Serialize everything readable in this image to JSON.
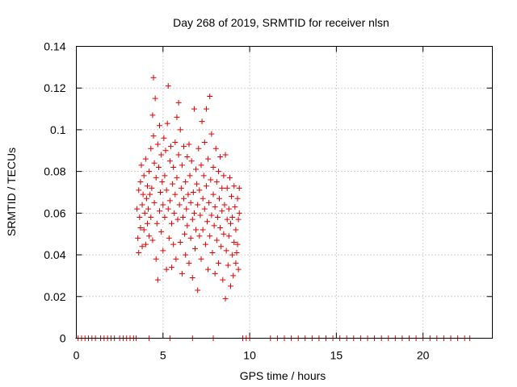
{
  "chart_data": {
    "type": "scatter",
    "title": "Day 268 of 2019, SRMTID for receiver nlsn",
    "xlabel": "GPS time / hours",
    "ylabel": "SRMTID / TECUs",
    "xlim": [
      0,
      24
    ],
    "ylim": [
      0,
      0.14
    ],
    "x_ticks": [
      0,
      5,
      10,
      15,
      20
    ],
    "y_ticks": [
      0,
      0.02,
      0.04,
      0.06,
      0.08,
      0.1,
      0.12,
      0.14
    ],
    "x_tick_labels": [
      "0",
      "5",
      "10",
      "15",
      "20"
    ],
    "y_tick_labels": [
      "0",
      "0.02",
      "0.04",
      "0.06",
      "0.08",
      "0.1",
      "0.12",
      "0.14"
    ],
    "grid": true,
    "legend": "none",
    "marker": "plus",
    "color": "#e00000",
    "series": [
      {
        "points": [
          [
            3.5,
            0.062
          ],
          [
            3.55,
            0.048
          ],
          [
            3.6,
            0.071
          ],
          [
            3.6,
            0.041
          ],
          [
            3.65,
            0.058
          ],
          [
            3.7,
            0.075
          ],
          [
            3.7,
            0.053
          ],
          [
            3.75,
            0.083
          ],
          [
            3.8,
            0.064
          ],
          [
            3.8,
            0.044
          ],
          [
            3.85,
            0.069
          ],
          [
            3.9,
            0.052
          ],
          [
            3.9,
            0.078
          ],
          [
            3.95,
            0.06
          ],
          [
            4.0,
            0.086
          ],
          [
            4.0,
            0.045
          ],
          [
            4.05,
            0.067
          ],
          [
            4.1,
            0.055
          ],
          [
            4.1,
            0.073
          ],
          [
            4.15,
            0.062
          ],
          [
            4.2,
            0.049
          ],
          [
            4.2,
            0.08
          ],
          [
            4.25,
            0.069
          ],
          [
            4.3,
            0.058
          ],
          [
            4.3,
            0.091
          ],
          [
            4.35,
            0.072
          ],
          [
            4.4,
            0.047
          ],
          [
            4.4,
            0.107
          ],
          [
            4.45,
            0.125
          ],
          [
            4.45,
            0.097
          ],
          [
            4.5,
            0.084
          ],
          [
            4.5,
            0.065
          ],
          [
            4.55,
            0.115
          ],
          [
            4.6,
            0.038
          ],
          [
            4.6,
            0.077
          ],
          [
            4.65,
            0.055
          ],
          [
            4.7,
            0.093
          ],
          [
            4.7,
            0.028
          ],
          [
            4.75,
            0.082
          ],
          [
            4.8,
            0.061
          ],
          [
            4.8,
            0.102
          ],
          [
            4.85,
            0.07
          ],
          [
            4.9,
            0.051
          ],
          [
            4.9,
            0.088
          ],
          [
            4.95,
            0.075
          ],
          [
            5.0,
            0.064
          ],
          [
            5.0,
            0.042
          ],
          [
            5.05,
            0.096
          ],
          [
            5.1,
            0.078
          ],
          [
            5.1,
            0.058
          ],
          [
            5.15,
            0.09
          ],
          [
            5.2,
            0.033
          ],
          [
            5.2,
            0.071
          ],
          [
            5.25,
            0.103
          ],
          [
            5.3,
            0.121
          ],
          [
            5.3,
            0.062
          ],
          [
            5.35,
            0.048
          ],
          [
            5.4,
            0.085
          ],
          [
            5.4,
            0.066
          ],
          [
            5.45,
            0.092
          ],
          [
            5.5,
            0.055
          ],
          [
            5.5,
            0.034
          ],
          [
            5.55,
            0.074
          ],
          [
            5.6,
            0.082
          ],
          [
            5.6,
            0.045
          ],
          [
            5.65,
            0.06
          ],
          [
            5.7,
            0.094
          ],
          [
            5.7,
            0.069
          ],
          [
            5.75,
            0.038
          ],
          [
            5.8,
            0.106
          ],
          [
            5.8,
            0.077
          ],
          [
            5.85,
            0.057
          ],
          [
            5.9,
            0.113
          ],
          [
            5.9,
            0.088
          ],
          [
            5.95,
            0.064
          ],
          [
            6.0,
            0.1
          ],
          [
            6.0,
            0.046
          ],
          [
            6.05,
            0.072
          ],
          [
            6.1,
            0.083
          ],
          [
            6.1,
            0.031
          ],
          [
            6.15,
            0.058
          ],
          [
            6.2,
            0.067
          ],
          [
            6.2,
            0.092
          ],
          [
            6.25,
            0.05
          ],
          [
            6.3,
            0.075
          ],
          [
            6.3,
            0.04
          ],
          [
            6.35,
            0.062
          ],
          [
            6.4,
            0.087
          ],
          [
            6.4,
            0.054
          ],
          [
            6.45,
            0.069
          ],
          [
            6.5,
            0.093
          ],
          [
            6.5,
            0.036
          ],
          [
            6.55,
            0.078
          ],
          [
            6.6,
            0.048
          ],
          [
            6.6,
            0.065
          ],
          [
            6.65,
            0.085
          ],
          [
            6.7,
            0.057
          ],
          [
            6.7,
            0.029
          ],
          [
            6.75,
            0.07
          ],
          [
            6.8,
            0.11
          ],
          [
            6.8,
            0.06
          ],
          [
            6.85,
            0.043
          ],
          [
            6.9,
            0.081
          ],
          [
            6.9,
            0.052
          ],
          [
            6.95,
            0.074
          ],
          [
            7.0,
            0.023
          ],
          [
            7.0,
            0.064
          ],
          [
            7.05,
            0.091
          ],
          [
            7.1,
            0.049
          ],
          [
            7.1,
            0.071
          ],
          [
            7.15,
            0.059
          ],
          [
            7.2,
            0.083
          ],
          [
            7.2,
            0.038
          ],
          [
            7.25,
            0.104
          ],
          [
            7.3,
            0.067
          ],
          [
            7.3,
            0.052
          ],
          [
            7.35,
            0.078
          ],
          [
            7.4,
            0.062
          ],
          [
            7.4,
            0.094
          ],
          [
            7.45,
            0.045
          ],
          [
            7.5,
            0.11
          ],
          [
            7.5,
            0.073
          ],
          [
            7.55,
            0.056
          ],
          [
            7.6,
            0.086
          ],
          [
            7.6,
            0.033
          ],
          [
            7.65,
            0.065
          ],
          [
            7.7,
            0.116
          ],
          [
            7.7,
            0.049
          ],
          [
            7.75,
            0.076
          ],
          [
            7.8,
            0.059
          ],
          [
            7.8,
            0.098
          ],
          [
            7.85,
            0.041
          ],
          [
            7.9,
            0.069
          ],
          [
            7.9,
            0.082
          ],
          [
            7.95,
            0.054
          ],
          [
            8.0,
            0.063
          ],
          [
            8.0,
            0.031
          ],
          [
            8.05,
            0.091
          ],
          [
            8.1,
            0.075
          ],
          [
            8.1,
            0.047
          ],
          [
            8.15,
            0.058
          ],
          [
            8.2,
            0.08
          ],
          [
            8.2,
            0.036
          ],
          [
            8.25,
            0.067
          ],
          [
            8.3,
            0.053
          ],
          [
            8.3,
            0.087
          ],
          [
            8.35,
            0.044
          ],
          [
            8.4,
            0.072
          ],
          [
            8.4,
            0.061
          ],
          [
            8.45,
            0.028
          ],
          [
            8.5,
            0.078
          ],
          [
            8.5,
            0.05
          ],
          [
            8.55,
            0.064
          ],
          [
            8.6,
            0.019
          ],
          [
            8.6,
            0.088
          ],
          [
            8.65,
            0.042
          ],
          [
            8.7,
            0.057
          ],
          [
            8.7,
            0.072
          ],
          [
            8.75,
            0.035
          ],
          [
            8.8,
            0.062
          ],
          [
            8.8,
            0.049
          ],
          [
            8.85,
            0.077
          ],
          [
            8.9,
            0.025
          ],
          [
            8.9,
            0.055
          ],
          [
            8.95,
            0.068
          ],
          [
            9.0,
            0.04
          ],
          [
            9.0,
            0.058
          ],
          [
            9.05,
            0.03
          ],
          [
            9.1,
            0.073
          ],
          [
            9.1,
            0.046
          ],
          [
            9.15,
            0.063
          ],
          [
            9.2,
            0.036
          ],
          [
            9.2,
            0.052
          ],
          [
            9.25,
            0.041
          ],
          [
            9.3,
            0.067
          ],
          [
            9.3,
            0.045
          ],
          [
            9.35,
            0.057
          ],
          [
            9.35,
            0.033
          ],
          [
            9.4,
            0.06
          ],
          [
            9.4,
            0.072
          ],
          [
            0.1,
            0
          ],
          [
            0.3,
            0
          ],
          [
            0.5,
            0
          ],
          [
            0.7,
            0
          ],
          [
            0.9,
            0
          ],
          [
            1.1,
            0
          ],
          [
            1.4,
            0
          ],
          [
            1.6,
            0
          ],
          [
            1.8,
            0
          ],
          [
            2.0,
            0
          ],
          [
            2.2,
            0
          ],
          [
            2.5,
            0
          ],
          [
            2.7,
            0
          ],
          [
            2.9,
            0
          ],
          [
            3.1,
            0
          ],
          [
            3.3,
            0
          ],
          [
            3.45,
            0
          ],
          [
            4.2,
            0
          ],
          [
            5.4,
            0
          ],
          [
            6.7,
            0
          ],
          [
            7.9,
            0
          ],
          [
            9.6,
            0
          ],
          [
            9.8,
            0
          ],
          [
            10.0,
            0
          ],
          [
            11.2,
            0
          ],
          [
            11.6,
            0
          ],
          [
            12.0,
            0
          ],
          [
            12.4,
            0
          ],
          [
            12.8,
            0
          ],
          [
            13.2,
            0
          ],
          [
            13.6,
            0
          ],
          [
            14.0,
            0
          ],
          [
            14.4,
            0
          ],
          [
            14.8,
            0
          ],
          [
            15.2,
            0
          ],
          [
            15.6,
            0
          ],
          [
            16.0,
            0
          ],
          [
            16.4,
            0
          ],
          [
            16.8,
            0
          ],
          [
            17.2,
            0
          ],
          [
            17.6,
            0
          ],
          [
            18.0,
            0
          ],
          [
            18.4,
            0
          ],
          [
            18.8,
            0
          ],
          [
            19.2,
            0
          ],
          [
            19.6,
            0
          ],
          [
            20.0,
            0
          ],
          [
            20.4,
            0
          ],
          [
            20.8,
            0
          ],
          [
            21.2,
            0
          ],
          [
            21.6,
            0
          ],
          [
            22.0,
            0
          ],
          [
            22.4,
            0
          ],
          [
            22.7,
            0
          ]
        ]
      }
    ]
  }
}
